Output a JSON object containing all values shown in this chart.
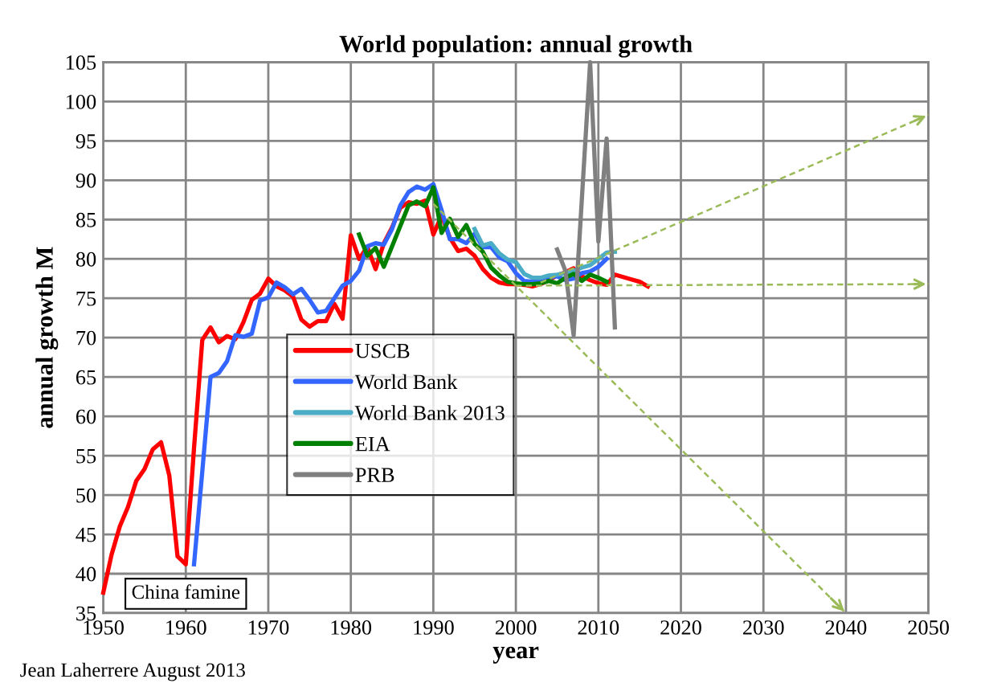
{
  "chart_data": {
    "type": "line",
    "title": "World population: annual growth",
    "xlabel": "year",
    "ylabel": "annual growth M",
    "annotations": [
      "China famine",
      "Jean Laherrere August 2013"
    ],
    "xlim": [
      1950,
      2050
    ],
    "xticks": [
      1950,
      1960,
      1970,
      1980,
      1990,
      2000,
      2010,
      2020,
      2030,
      2040,
      2050
    ],
    "ylim": [
      35,
      105
    ],
    "yticks": [
      35,
      40,
      45,
      50,
      55,
      60,
      65,
      70,
      75,
      80,
      85,
      90,
      95,
      100,
      105
    ],
    "grid": true,
    "legend": "center",
    "line_style": "solid",
    "marker": "none",
    "series": [
      {
        "name": "USCB",
        "color": "#ff0000",
        "x": [
          1950,
          1951,
          1952,
          1953,
          1954,
          1955,
          1956,
          1957,
          1958,
          1959,
          1960,
          1961,
          1962,
          1963,
          1964,
          1965,
          1966,
          1967,
          1968,
          1969,
          1970,
          1971,
          1972,
          1973,
          1974,
          1975,
          1976,
          1977,
          1978,
          1979,
          1980,
          1981,
          1982,
          1983,
          1984,
          1985,
          1986,
          1987,
          1988,
          1989,
          1990,
          1991,
          1992,
          1993,
          1994,
          1995,
          1996,
          1997,
          1998,
          1999,
          2000,
          2001,
          2002,
          2003,
          2004,
          2005,
          2006,
          2007,
          2008,
          2009,
          2010,
          2011,
          2012,
          2013,
          2014,
          2015,
          2016
        ],
        "values": [
          37.6,
          42.4,
          46,
          48.5,
          51.8,
          53.3,
          55.8,
          56.7,
          52.5,
          42.2,
          41.2,
          56,
          69.7,
          71.3,
          69.4,
          70.2,
          69.8,
          72,
          74.8,
          75.6,
          77.5,
          76.5,
          76,
          75.2,
          72.3,
          71.4,
          72.1,
          72.1,
          74.3,
          72.4,
          83,
          80,
          81.5,
          78.7,
          82,
          84,
          86.5,
          87.2,
          87,
          87.4,
          83.1,
          85.5,
          82.7,
          81,
          81.3,
          80.4,
          78.7,
          77.6,
          77,
          76.8,
          76.8,
          76.7,
          76.5,
          76.8,
          77.3,
          77.9,
          78.3,
          78.8,
          77.8,
          77.3,
          76.9,
          76.7,
          78,
          77.7,
          77.4,
          77.1,
          76.5
        ]
      },
      {
        "name": "World Bank",
        "color": "#3366ff",
        "x": [
          1961,
          1962,
          1963,
          1964,
          1965,
          1966,
          1967,
          1968,
          1969,
          1970,
          1971,
          1972,
          1973,
          1974,
          1975,
          1976,
          1977,
          1978,
          1979,
          1980,
          1981,
          1982,
          1983,
          1984,
          1985,
          1986,
          1987,
          1988,
          1989,
          1990,
          1991,
          1992,
          1993,
          1994,
          1995,
          1996,
          1997,
          1998,
          1999,
          2000,
          2001,
          2002,
          2003,
          2004,
          2005,
          2006,
          2007,
          2008,
          2009,
          2010,
          2011
        ],
        "values": [
          41.2,
          53,
          65,
          65.5,
          67,
          70.3,
          70.1,
          70.5,
          74.7,
          75.1,
          77,
          76.4,
          75.5,
          76.2,
          74.8,
          73.2,
          73.4,
          75,
          76.6,
          77.2,
          78.5,
          81.6,
          82,
          81.8,
          83.8,
          86.8,
          88.5,
          89.2,
          88.8,
          89.5,
          86.2,
          82.5,
          82.5,
          82,
          83.2,
          81.5,
          81.5,
          80.2,
          79.7,
          78.2,
          77.2,
          77.1,
          77.2,
          77.6,
          77.8,
          77.3,
          77.5,
          78.2,
          78.4,
          79,
          80
        ]
      },
      {
        "name": "World Bank 2013",
        "color": "#4bacc6",
        "x": [
          1995,
          1996,
          1997,
          1998,
          1999,
          2000,
          2001,
          2002,
          2003,
          2004,
          2005,
          2006,
          2007,
          2008,
          2009,
          2010,
          2011,
          2012
        ],
        "values": [
          83.8,
          81.7,
          82,
          80.7,
          79.9,
          79.6,
          78.1,
          77.6,
          77.6,
          77.9,
          78,
          78.2,
          78.5,
          78.9,
          79.2,
          80,
          80.8,
          80.9
        ]
      },
      {
        "name": "EIA",
        "color": "#008000",
        "x": [
          1981,
          1982,
          1983,
          1984,
          1987,
          1988,
          1989,
          1990,
          1991,
          1992,
          1993,
          1994,
          1995,
          1996,
          1997,
          1998,
          1999,
          2000,
          2001,
          2002,
          2003,
          2004,
          2005,
          2006,
          2007,
          2008,
          2009,
          2010,
          2011
        ],
        "values": [
          83.1,
          80.4,
          81.4,
          79,
          86.8,
          87.3,
          86.7,
          89.1,
          83.3,
          85.1,
          82.8,
          84.3,
          81.9,
          80.9,
          78.9,
          77.9,
          77.1,
          76.9,
          76.8,
          76.8,
          76.9,
          77.2,
          76.9,
          77.6,
          78.1,
          77.2,
          78,
          77.6,
          77.1
        ]
      },
      {
        "name": "PRB",
        "color": "#808080",
        "x": [
          2005,
          2006,
          2007,
          2009,
          2010,
          2011,
          2012
        ],
        "values": [
          81.2,
          78.5,
          70.3,
          105,
          82.2,
          95.3,
          71.3
        ]
      },
      {
        "type": "line",
        "color": "#9bbb59",
        "line_style": "dashed",
        "x": [
          1990,
          2040
        ],
        "values": [
          87,
          35
        ]
      },
      {
        "type": "line",
        "color": "#9bbb59",
        "line_style": "dashed",
        "x": [
          2000,
          2050
        ],
        "values": [
          76.6,
          76.8
        ]
      },
      {
        "type": "line",
        "color": "#9bbb59",
        "line_style": "dashed",
        "x": [
          2003,
          2050
        ],
        "values": [
          77,
          98.3
        ]
      }
    ]
  }
}
